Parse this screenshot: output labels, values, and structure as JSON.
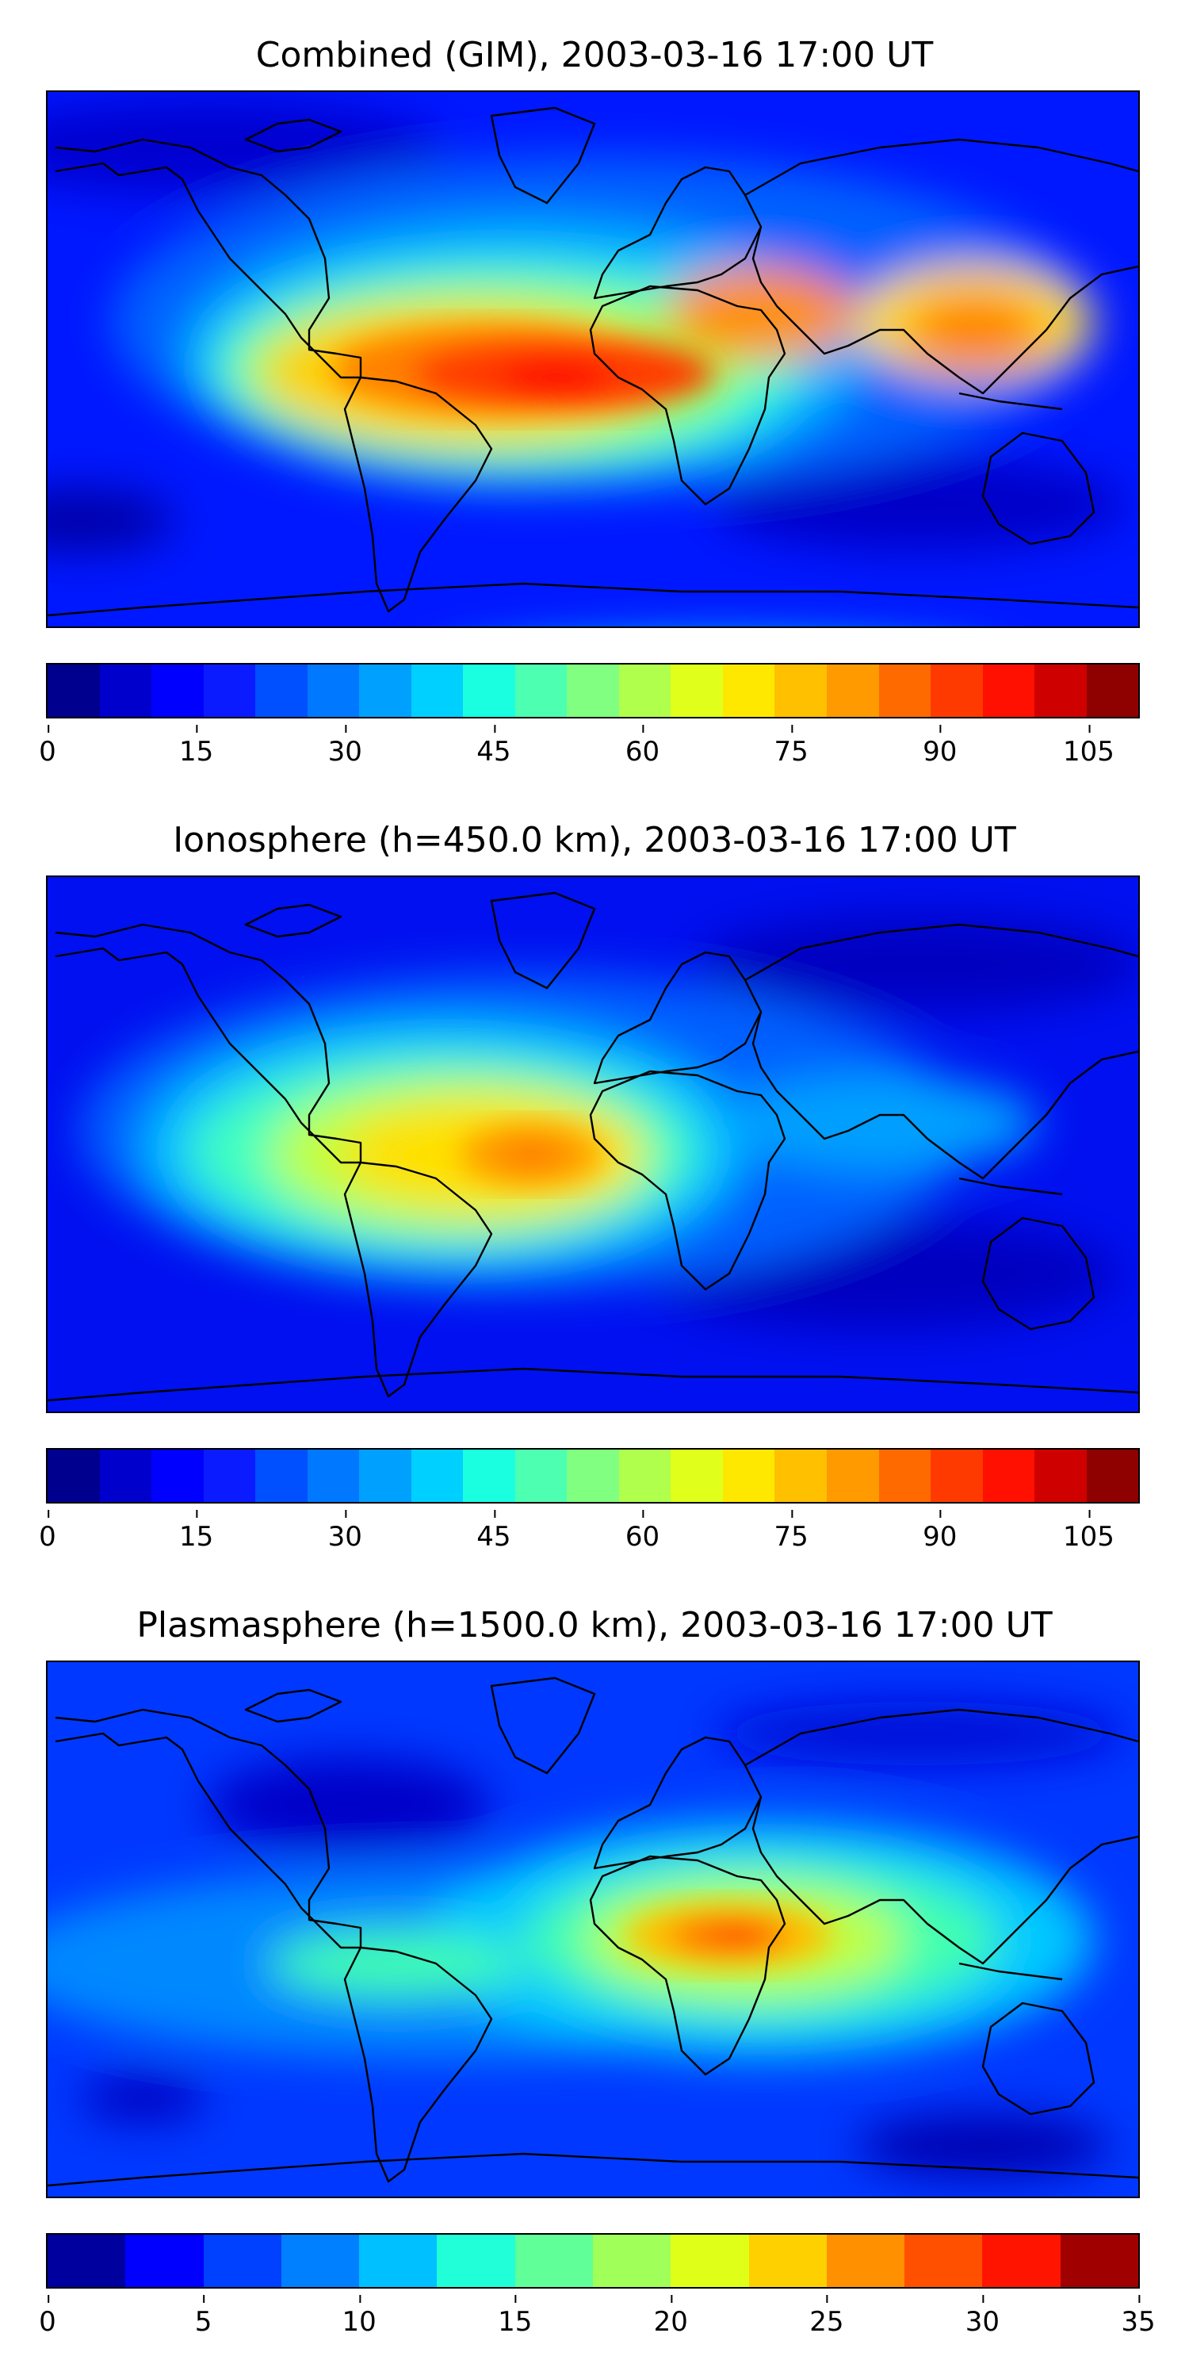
{
  "panels": [
    {
      "title": "Combined (GIM), 2003-03-16 17:00 UT",
      "colorbar": {
        "min": 0,
        "max": 110,
        "ticks": [
          "0",
          "15",
          "30",
          "45",
          "60",
          "75",
          "90",
          "105"
        ],
        "tick_values": [
          0,
          15,
          30,
          45,
          60,
          75,
          90,
          105
        ],
        "colors": [
          "#00008f",
          "#0000cd",
          "#0000ff",
          "#0a1cff",
          "#0050ff",
          "#0078ff",
          "#00a0ff",
          "#00d0ff",
          "#1affe0",
          "#4dffb0",
          "#80ff80",
          "#b0ff4d",
          "#e0ff1a",
          "#ffe800",
          "#ffc000",
          "#ff9a00",
          "#ff6a00",
          "#ff3a00",
          "#ff1000",
          "#cf0000",
          "#8f0000"
        ]
      }
    },
    {
      "title": "Ionosphere  (h=450.0 km), 2003-03-16 17:00 UT",
      "colorbar": {
        "min": 0,
        "max": 110,
        "ticks": [
          "0",
          "15",
          "30",
          "45",
          "60",
          "75",
          "90",
          "105"
        ],
        "tick_values": [
          0,
          15,
          30,
          45,
          60,
          75,
          90,
          105
        ],
        "colors": [
          "#00008f",
          "#0000cd",
          "#0000ff",
          "#0a1cff",
          "#0050ff",
          "#0078ff",
          "#00a0ff",
          "#00d0ff",
          "#1affe0",
          "#4dffb0",
          "#80ff80",
          "#b0ff4d",
          "#e0ff1a",
          "#ffe800",
          "#ffc000",
          "#ff9a00",
          "#ff6a00",
          "#ff3a00",
          "#ff1000",
          "#cf0000",
          "#8f0000"
        ]
      }
    },
    {
      "title": "Plasmasphere (h=1500.0 km), 2003-03-16 17:00 UT",
      "colorbar": {
        "min": 0,
        "max": 35,
        "ticks": [
          "0",
          "5",
          "10",
          "15",
          "20",
          "25",
          "30",
          "35"
        ],
        "tick_values": [
          0,
          5,
          10,
          15,
          20,
          25,
          30,
          35
        ],
        "colors": [
          "#00009f",
          "#0000ff",
          "#0040ff",
          "#0080ff",
          "#00c0ff",
          "#20ffd8",
          "#60ff98",
          "#a0ff58",
          "#e0ff18",
          "#ffd000",
          "#ff9000",
          "#ff5000",
          "#ff1400",
          "#a00000"
        ]
      }
    }
  ]
}
